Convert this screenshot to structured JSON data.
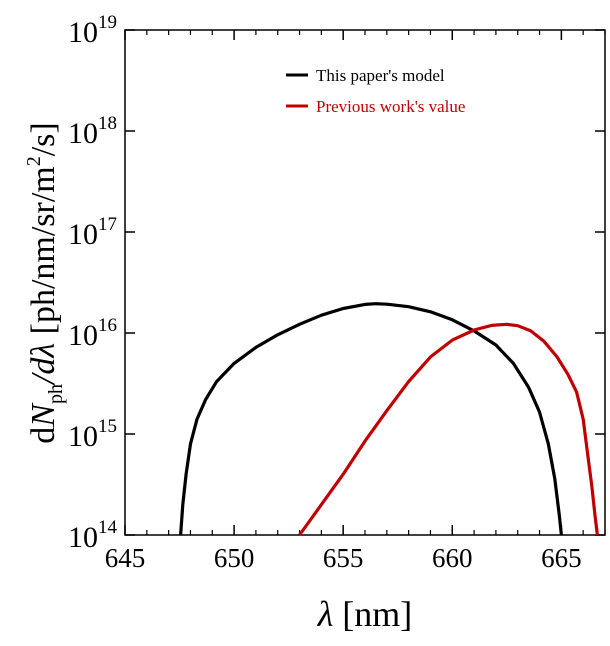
{
  "chart_data": {
    "type": "line",
    "title": "",
    "xlabel_symbol": "λ",
    "xlabel_unit": "[nm]",
    "ylabel_prefix": "dN",
    "ylabel_sub": "ph",
    "ylabel_mid": "/dλ",
    "ylabel_unit_a": " [ph/nm/sr/m",
    "ylabel_unit_sup": "2",
    "ylabel_unit_b": "/s]",
    "xlim": [
      645,
      667
    ],
    "ylim": [
      100000000000000.0,
      1e+19
    ],
    "yscale": "log",
    "grid": false,
    "legend_position": "top-right",
    "x_ticks": [
      "645",
      "650",
      "655",
      "660",
      "665"
    ],
    "x_tick_values": [
      645,
      650,
      655,
      660,
      665
    ],
    "y_tick_exponents": [
      "14",
      "15",
      "16",
      "17",
      "18",
      "19"
    ],
    "y_tick_base": "10",
    "series": [
      {
        "name": "This paper's model",
        "color": "#000000",
        "points": [
          [
            647.55,
            100000000000000.0
          ],
          [
            647.65,
            200000000000000.0
          ],
          [
            647.8,
            400000000000000.0
          ],
          [
            648.0,
            800000000000000.0
          ],
          [
            648.3,
            1400000000000000.0
          ],
          [
            648.7,
            2200000000000000.0
          ],
          [
            649.2,
            3300000000000000.0
          ],
          [
            650.0,
            5000000000000000.0
          ],
          [
            651.0,
            7200000000000000.0
          ],
          [
            652.0,
            9600000000000000.0
          ],
          [
            653.0,
            1.22e+16
          ],
          [
            654.0,
            1.5e+16
          ],
          [
            655.0,
            1.75e+16
          ],
          [
            656.0,
            1.92e+16
          ],
          [
            656.5,
            1.95e+16
          ],
          [
            657.0,
            1.93e+16
          ],
          [
            658.0,
            1.82e+16
          ],
          [
            659.0,
            1.62e+16
          ],
          [
            660.0,
            1.35e+16
          ],
          [
            661.0,
            1.05e+16
          ],
          [
            662.0,
            7600000000000000.0
          ],
          [
            662.8,
            5000000000000000.0
          ],
          [
            663.5,
            2900000000000000.0
          ],
          [
            664.0,
            1650000000000000.0
          ],
          [
            664.4,
            800000000000000.0
          ],
          [
            664.7,
            360000000000000.0
          ],
          [
            664.9,
            160000000000000.0
          ],
          [
            665.0,
            100000000000000.0
          ]
        ]
      },
      {
        "name": "Previous work's value",
        "color": "#c00000",
        "points": [
          [
            653.0,
            100000000000000.0
          ],
          [
            654.0,
            200000000000000.0
          ],
          [
            655.0,
            400000000000000.0
          ],
          [
            656.0,
            850000000000000.0
          ],
          [
            657.0,
            1700000000000000.0
          ],
          [
            658.0,
            3300000000000000.0
          ],
          [
            659.0,
            5800000000000000.0
          ],
          [
            660.0,
            8500000000000000.0
          ],
          [
            661.0,
            1.07e+16
          ],
          [
            661.8,
            1.19e+16
          ],
          [
            662.5,
            1.22e+16
          ],
          [
            663.0,
            1.18e+16
          ],
          [
            663.6,
            1.05e+16
          ],
          [
            664.2,
            8300000000000000.0
          ],
          [
            664.8,
            5800000000000000.0
          ],
          [
            665.3,
            3900000000000000.0
          ],
          [
            665.7,
            2600000000000000.0
          ],
          [
            666.0,
            1400000000000000.0
          ],
          [
            666.2,
            650000000000000.0
          ],
          [
            666.4,
            300000000000000.0
          ],
          [
            666.55,
            150000000000000.0
          ],
          [
            666.65,
            100000000000000.0
          ]
        ]
      }
    ]
  }
}
